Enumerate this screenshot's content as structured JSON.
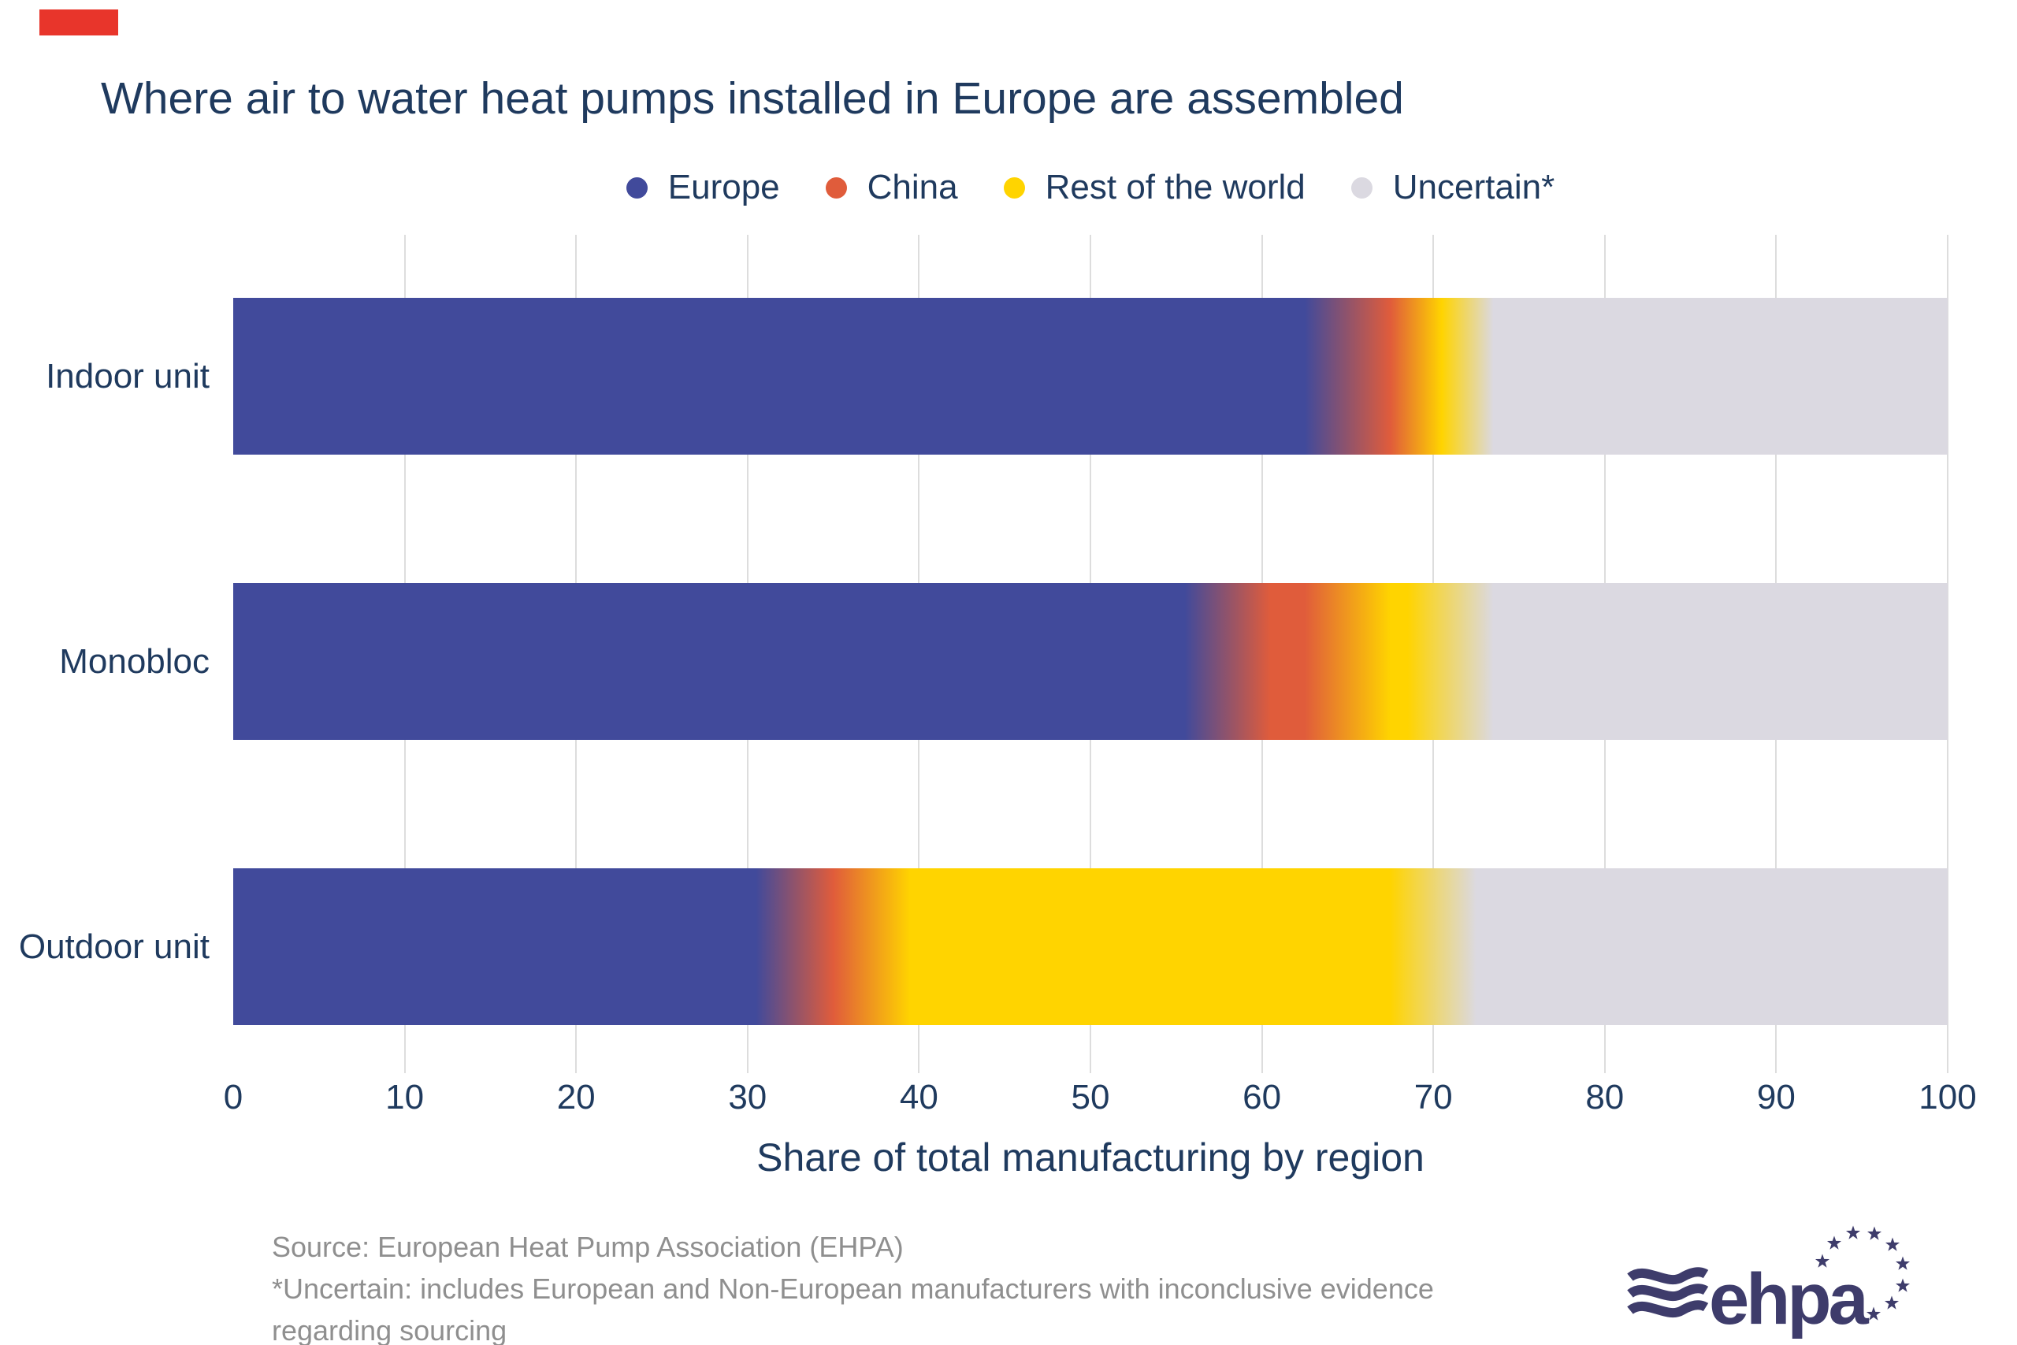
{
  "brand": {
    "accent_mark_color": "#E8352B",
    "logo_text": "ehpa",
    "logo_color": "#3E3C6B"
  },
  "title": {
    "text": "Where air to water heat pumps installed in Europe are assembled",
    "color": "#1F3A5E"
  },
  "text_colors": {
    "navy": "#1F3A5E",
    "source_gray": "#8F8F8F"
  },
  "chart_data": {
    "type": "bar",
    "orientation": "horizontal-stacked",
    "title": "Where air to water heat pumps installed in Europe are assembled",
    "categories": [
      "Indoor unit",
      "Monobloc",
      "Outdoor unit"
    ],
    "series": [
      {
        "name": "Europe",
        "color": "#414A9B",
        "values": [
          65,
          58,
          33
        ]
      },
      {
        "name": "China",
        "color": "#E05C3B",
        "values": [
          5,
          7,
          4
        ]
      },
      {
        "name": "Rest of the world",
        "color": "#FFD400",
        "values": [
          1,
          6,
          33
        ]
      },
      {
        "name": "Uncertain*",
        "color": "#DBD9E1",
        "values": [
          29,
          29,
          30
        ]
      }
    ],
    "xlabel": "Share of total manufacturing by region",
    "xlim": [
      0,
      100
    ],
    "x_ticks": [
      0,
      10,
      20,
      30,
      40,
      50,
      60,
      70,
      80,
      90,
      100
    ],
    "gridlines": "vertical light-gray lines at every 10 units, behind bars",
    "legend_position": "top-center",
    "segment_blend_units": 5,
    "note": "segment boundaries are smooth color gradients, not hard edges"
  },
  "footer": {
    "source_lines": [
      "Source: European Heat Pump Association (EHPA)",
      "*Uncertain: includes European and Non-European manufacturers with inconclusive evidence",
      "regarding sourcing"
    ]
  }
}
